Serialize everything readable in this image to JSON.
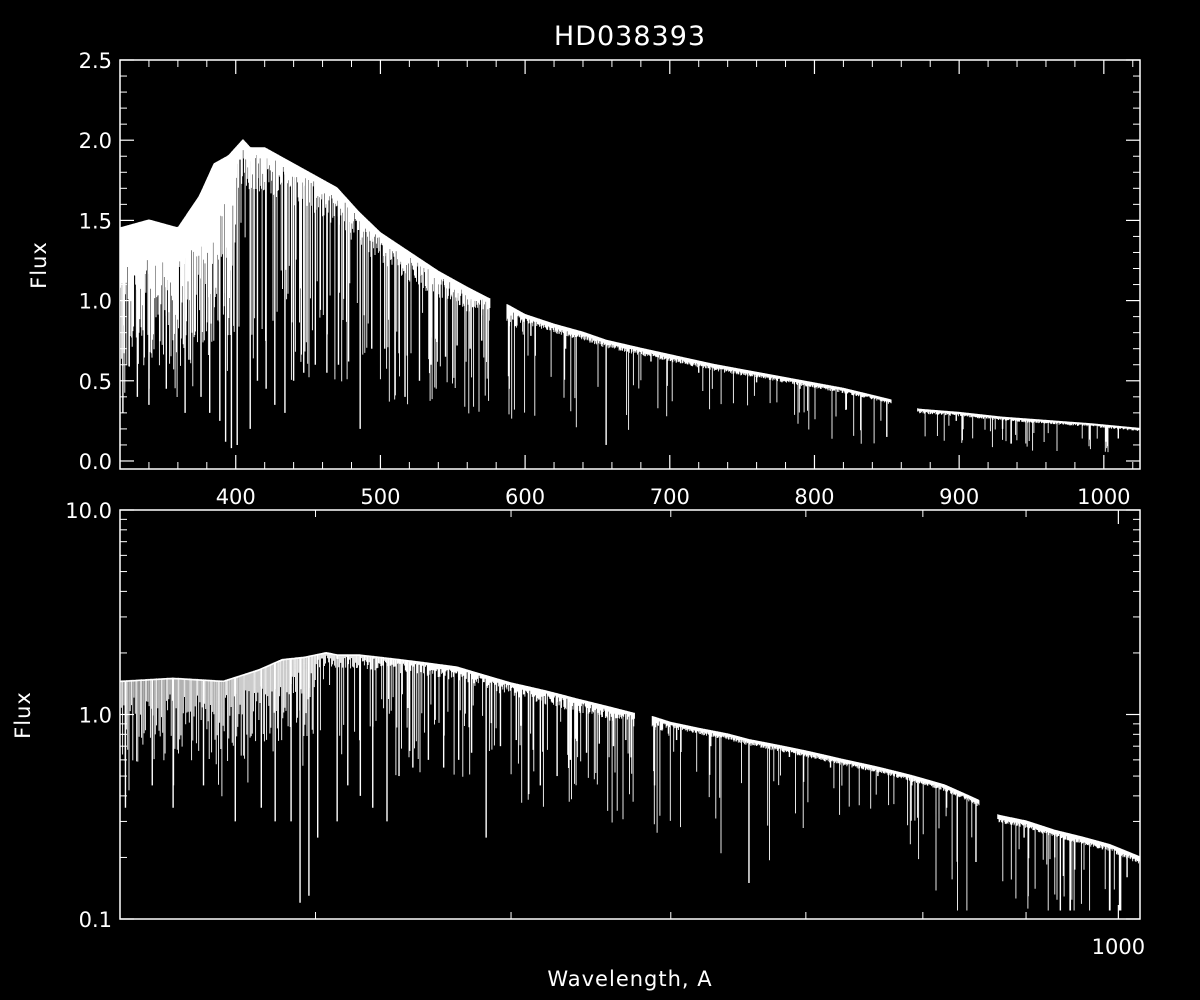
{
  "chart_data": [
    {
      "type": "line",
      "title": "HD038393",
      "xlabel": "",
      "ylabel": "Flux",
      "xscale": "linear",
      "yscale": "linear",
      "xlim": [
        320,
        1025
      ],
      "ylim": [
        -0.05,
        2.5
      ],
      "xticks": [
        {
          "value": 400,
          "label": "400"
        },
        {
          "value": 500,
          "label": "500"
        },
        {
          "value": 600,
          "label": "600"
        },
        {
          "value": 700,
          "label": "700"
        },
        {
          "value": 800,
          "label": "800"
        },
        {
          "value": 900,
          "label": "900"
        },
        {
          "value": 1000,
          "label": "1000"
        }
      ],
      "yticks": [
        {
          "value": 0.0,
          "label": "0.0"
        },
        {
          "value": 0.5,
          "label": "0.5"
        },
        {
          "value": 1.0,
          "label": "1.0"
        },
        {
          "value": 1.5,
          "label": "1.5"
        },
        {
          "value": 2.0,
          "label": "2.0"
        },
        {
          "value": 2.5,
          "label": "2.5"
        }
      ],
      "grid": false,
      "line_color": "#ffffff",
      "series": [
        {
          "x": [
            320,
            340,
            360,
            375,
            385,
            395,
            405,
            410,
            420,
            430,
            440,
            450,
            470,
            485,
            500,
            520,
            540,
            560,
            575,
            588,
            600,
            620,
            640,
            656,
            680,
            700,
            730,
            760,
            790,
            820,
            852,
            872,
            900,
            930,
            960,
            990,
            1025
          ],
          "y": [
            1.45,
            1.5,
            1.45,
            1.65,
            1.85,
            1.9,
            2.0,
            1.95,
            1.95,
            1.9,
            1.85,
            1.8,
            1.7,
            1.55,
            1.42,
            1.3,
            1.18,
            1.08,
            1.01,
            0.97,
            0.91,
            0.85,
            0.8,
            0.75,
            0.7,
            0.66,
            0.6,
            0.55,
            0.5,
            0.45,
            0.38,
            0.32,
            0.3,
            0.27,
            0.25,
            0.23,
            0.2
          ],
          "lows": [
            {
              "x": 322,
              "y": 0.3
            },
            {
              "x": 332,
              "y": 0.4
            },
            {
              "x": 340,
              "y": 0.35
            },
            {
              "x": 352,
              "y": 0.45
            },
            {
              "x": 365,
              "y": 0.3
            },
            {
              "x": 376,
              "y": 0.4
            },
            {
              "x": 382,
              "y": 0.3
            },
            {
              "x": 389,
              "y": 0.25
            },
            {
              "x": 393,
              "y": 0.12
            },
            {
              "x": 397,
              "y": 0.08
            },
            {
              "x": 401,
              "y": 0.1
            },
            {
              "x": 410,
              "y": 0.2
            },
            {
              "x": 415,
              "y": 0.5
            },
            {
              "x": 421,
              "y": 0.45
            },
            {
              "x": 427,
              "y": 0.35
            },
            {
              "x": 434,
              "y": 0.3
            },
            {
              "x": 440,
              "y": 0.5
            },
            {
              "x": 447,
              "y": 0.55
            },
            {
              "x": 455,
              "y": 0.6
            },
            {
              "x": 463,
              "y": 0.55
            },
            {
              "x": 471,
              "y": 0.6
            },
            {
              "x": 478,
              "y": 0.62
            },
            {
              "x": 486,
              "y": 0.2
            },
            {
              "x": 494,
              "y": 0.7
            },
            {
              "x": 503,
              "y": 0.7
            },
            {
              "x": 517,
              "y": 0.4
            },
            {
              "x": 527,
              "y": 0.5
            },
            {
              "x": 535,
              "y": 0.6
            },
            {
              "x": 545,
              "y": 0.65
            },
            {
              "x": 553,
              "y": 0.72
            },
            {
              "x": 562,
              "y": 0.7
            },
            {
              "x": 570,
              "y": 0.75
            },
            {
              "x": 589,
              "y": 0.45
            },
            {
              "x": 604,
              "y": 0.78
            },
            {
              "x": 628,
              "y": 0.7
            },
            {
              "x": 656,
              "y": 0.1
            },
            {
              "x": 687,
              "y": 0.62
            },
            {
              "x": 720,
              "y": 0.55
            },
            {
              "x": 760,
              "y": 0.49
            },
            {
              "x": 790,
              "y": 0.45
            },
            {
              "x": 822,
              "y": 0.32
            },
            {
              "x": 850,
              "y": 0.15
            },
            {
              "x": 898,
              "y": 0.25
            },
            {
              "x": 930,
              "y": 0.2
            },
            {
              "x": 1010,
              "y": 0.14
            }
          ],
          "gaps": [
            [
              576,
              587
            ],
            [
              853,
              871
            ]
          ]
        }
      ]
    },
    {
      "type": "line",
      "title": "",
      "xlabel": "Wavelength, A",
      "ylabel": "Flux",
      "xscale": "log",
      "yscale": "log",
      "xlim": [
        320,
        1025
      ],
      "ylim": [
        0.1,
        10.0
      ],
      "xticks": [
        {
          "value": 1000,
          "label": "1000"
        }
      ],
      "yticks": [
        {
          "value": 0.1,
          "label": "0.1"
        },
        {
          "value": 1.0,
          "label": "1.0"
        },
        {
          "value": 10.0,
          "label": "10.0"
        }
      ],
      "grid": false,
      "line_color": "#ffffff",
      "series": [
        {
          "x": [
            320,
            340,
            360,
            375,
            385,
            395,
            405,
            410,
            420,
            430,
            440,
            450,
            470,
            485,
            500,
            520,
            540,
            560,
            575,
            588,
            600,
            620,
            640,
            656,
            680,
            700,
            730,
            760,
            790,
            820,
            852,
            872,
            900,
            930,
            960,
            990,
            1025
          ],
          "y": [
            1.45,
            1.5,
            1.45,
            1.65,
            1.85,
            1.9,
            2.0,
            1.95,
            1.95,
            1.9,
            1.85,
            1.8,
            1.7,
            1.55,
            1.42,
            1.3,
            1.18,
            1.08,
            1.01,
            0.97,
            0.91,
            0.85,
            0.8,
            0.75,
            0.7,
            0.66,
            0.6,
            0.55,
            0.5,
            0.45,
            0.38,
            0.32,
            0.3,
            0.27,
            0.25,
            0.23,
            0.2
          ],
          "lows": [
            {
              "x": 322,
              "y": 0.35
            },
            {
              "x": 332,
              "y": 0.45
            },
            {
              "x": 340,
              "y": 0.35
            },
            {
              "x": 352,
              "y": 0.45
            },
            {
              "x": 365,
              "y": 0.3
            },
            {
              "x": 376,
              "y": 0.35
            },
            {
              "x": 382,
              "y": 0.3
            },
            {
              "x": 389,
              "y": 0.3
            },
            {
              "x": 393,
              "y": 0.12
            },
            {
              "x": 397,
              "y": 0.13
            },
            {
              "x": 401,
              "y": 0.25
            },
            {
              "x": 410,
              "y": 0.3
            },
            {
              "x": 415,
              "y": 0.45
            },
            {
              "x": 421,
              "y": 0.4
            },
            {
              "x": 427,
              "y": 0.35
            },
            {
              "x": 434,
              "y": 0.3
            },
            {
              "x": 440,
              "y": 0.5
            },
            {
              "x": 447,
              "y": 0.55
            },
            {
              "x": 455,
              "y": 0.6
            },
            {
              "x": 463,
              "y": 0.55
            },
            {
              "x": 471,
              "y": 0.6
            },
            {
              "x": 478,
              "y": 0.65
            },
            {
              "x": 486,
              "y": 0.25
            },
            {
              "x": 494,
              "y": 0.7
            },
            {
              "x": 503,
              "y": 0.75
            },
            {
              "x": 517,
              "y": 0.45
            },
            {
              "x": 527,
              "y": 0.5
            },
            {
              "x": 535,
              "y": 0.6
            },
            {
              "x": 545,
              "y": 0.65
            },
            {
              "x": 553,
              "y": 0.72
            },
            {
              "x": 562,
              "y": 0.7
            },
            {
              "x": 570,
              "y": 0.75
            },
            {
              "x": 589,
              "y": 0.45
            },
            {
              "x": 604,
              "y": 0.75
            },
            {
              "x": 628,
              "y": 0.7
            },
            {
              "x": 656,
              "y": 0.15
            },
            {
              "x": 687,
              "y": 0.62
            },
            {
              "x": 720,
              "y": 0.55
            },
            {
              "x": 760,
              "y": 0.5
            },
            {
              "x": 790,
              "y": 0.45
            },
            {
              "x": 822,
              "y": 0.35
            },
            {
              "x": 850,
              "y": 0.19
            },
            {
              "x": 898,
              "y": 0.25
            },
            {
              "x": 930,
              "y": 0.2
            },
            {
              "x": 1010,
              "y": 0.16
            }
          ],
          "gaps": [
            [
              576,
              587
            ],
            [
              853,
              871
            ]
          ]
        }
      ]
    }
  ]
}
